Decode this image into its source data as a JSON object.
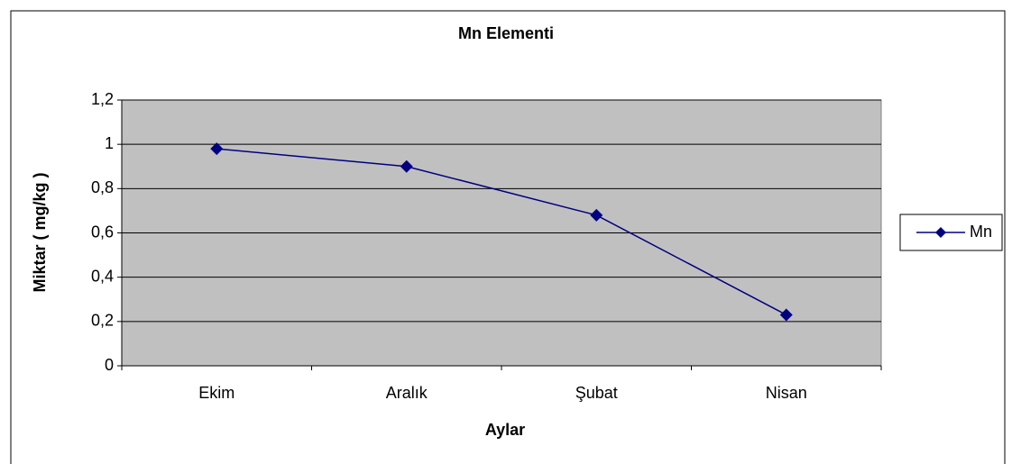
{
  "chart_data": {
    "type": "line",
    "title": "Mn Elementi",
    "x_label": "Aylar",
    "y_label": "Miktar ( mg/kg )",
    "categories": [
      "Ekim",
      "Aralık",
      "Şubat",
      "Nisan"
    ],
    "series": [
      {
        "name": "Mn",
        "color": "#000080",
        "values": [
          0.98,
          0.9,
          0.68,
          0.23
        ]
      }
    ],
    "ylim": [
      0,
      1.2
    ],
    "yticks": [
      0,
      {
        "value": 0.2,
        "label": "0,2"
      },
      {
        "value": 0.4,
        "label": "0,4"
      },
      {
        "value": 0.6,
        "label": "0,6"
      },
      {
        "value": 0.8,
        "label": "0,8"
      },
      1,
      {
        "value": 1.2,
        "label": "1,2"
      }
    ],
    "grid": true,
    "legend": "right"
  }
}
